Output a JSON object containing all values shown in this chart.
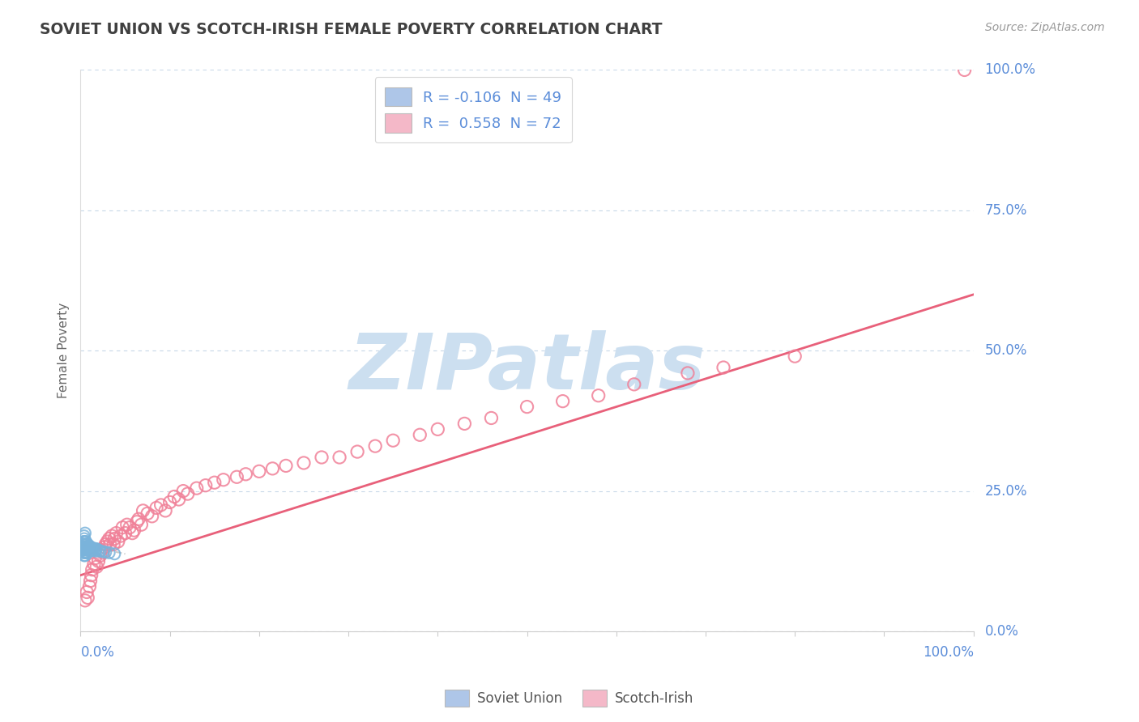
{
  "title": "SOVIET UNION VS SCOTCH-IRISH FEMALE POVERTY CORRELATION CHART",
  "source": "Source: ZipAtlas.com",
  "ylabel": "Female Poverty",
  "ytick_labels": [
    "0.0%",
    "25.0%",
    "50.0%",
    "75.0%",
    "100.0%"
  ],
  "ytick_values": [
    0.0,
    0.25,
    0.5,
    0.75,
    1.0
  ],
  "xlim": [
    0.0,
    1.0
  ],
  "ylim": [
    0.0,
    1.0
  ],
  "legend1_label": "R = -0.106  N = 49",
  "legend2_label": "R =  0.558  N = 72",
  "legend1_color": "#aec6e8",
  "legend2_color": "#f4b8c8",
  "series1_name": "Soviet Union",
  "series2_name": "Scotch-Irish",
  "series1_color": "#7ab3db",
  "series2_color": "#f08098",
  "trendline1_color": "#c8c8c8",
  "trendline2_color": "#e8607a",
  "watermark": "ZIPatlas",
  "watermark_color": "#ccdff0",
  "background_color": "#ffffff",
  "grid_color": "#c8d8e8",
  "title_color": "#404040",
  "axis_label_color": "#5b8dd9",
  "soviet_x": [
    0.002,
    0.003,
    0.003,
    0.003,
    0.004,
    0.004,
    0.004,
    0.004,
    0.005,
    0.005,
    0.005,
    0.005,
    0.005,
    0.005,
    0.006,
    0.006,
    0.006,
    0.006,
    0.006,
    0.007,
    0.007,
    0.007,
    0.007,
    0.008,
    0.008,
    0.008,
    0.008,
    0.009,
    0.009,
    0.009,
    0.01,
    0.01,
    0.01,
    0.011,
    0.011,
    0.012,
    0.012,
    0.013,
    0.014,
    0.015,
    0.016,
    0.017,
    0.018,
    0.02,
    0.022,
    0.025,
    0.028,
    0.032,
    0.038
  ],
  "soviet_y": [
    0.155,
    0.145,
    0.16,
    0.14,
    0.15,
    0.165,
    0.135,
    0.17,
    0.145,
    0.155,
    0.16,
    0.14,
    0.135,
    0.175,
    0.15,
    0.155,
    0.145,
    0.14,
    0.16,
    0.15,
    0.145,
    0.155,
    0.14,
    0.15,
    0.155,
    0.145,
    0.14,
    0.148,
    0.152,
    0.145,
    0.148,
    0.152,
    0.145,
    0.15,
    0.145,
    0.148,
    0.144,
    0.148,
    0.145,
    0.148,
    0.145,
    0.143,
    0.147,
    0.145,
    0.143,
    0.142,
    0.141,
    0.14,
    0.138
  ],
  "soviet_trendline_x": [
    0.0,
    0.05
  ],
  "soviet_trendline_y": [
    0.155,
    0.138
  ],
  "scotch_x": [
    0.005,
    0.007,
    0.008,
    0.01,
    0.011,
    0.012,
    0.013,
    0.015,
    0.016,
    0.018,
    0.02,
    0.022,
    0.023,
    0.025,
    0.027,
    0.028,
    0.03,
    0.032,
    0.033,
    0.035,
    0.037,
    0.038,
    0.04,
    0.042,
    0.045,
    0.047,
    0.05,
    0.052,
    0.055,
    0.058,
    0.06,
    0.063,
    0.065,
    0.068,
    0.07,
    0.075,
    0.08,
    0.085,
    0.09,
    0.095,
    0.1,
    0.105,
    0.11,
    0.115,
    0.12,
    0.13,
    0.14,
    0.15,
    0.16,
    0.175,
    0.185,
    0.2,
    0.215,
    0.23,
    0.25,
    0.27,
    0.29,
    0.31,
    0.33,
    0.35,
    0.38,
    0.4,
    0.43,
    0.46,
    0.5,
    0.54,
    0.58,
    0.62,
    0.68,
    0.72,
    0.8,
    0.99
  ],
  "scotch_y": [
    0.055,
    0.07,
    0.06,
    0.08,
    0.09,
    0.1,
    0.11,
    0.12,
    0.13,
    0.115,
    0.125,
    0.135,
    0.145,
    0.14,
    0.15,
    0.155,
    0.16,
    0.165,
    0.155,
    0.17,
    0.155,
    0.165,
    0.175,
    0.16,
    0.17,
    0.185,
    0.175,
    0.19,
    0.185,
    0.175,
    0.18,
    0.195,
    0.2,
    0.19,
    0.215,
    0.21,
    0.205,
    0.22,
    0.225,
    0.215,
    0.23,
    0.24,
    0.235,
    0.25,
    0.245,
    0.255,
    0.26,
    0.265,
    0.27,
    0.275,
    0.28,
    0.285,
    0.29,
    0.295,
    0.3,
    0.31,
    0.31,
    0.32,
    0.33,
    0.34,
    0.35,
    0.36,
    0.37,
    0.38,
    0.4,
    0.41,
    0.42,
    0.44,
    0.46,
    0.47,
    0.49,
    1.0
  ],
  "scotch_trendline_x": [
    0.0,
    1.0
  ],
  "scotch_trendline_y": [
    0.1,
    0.6
  ]
}
